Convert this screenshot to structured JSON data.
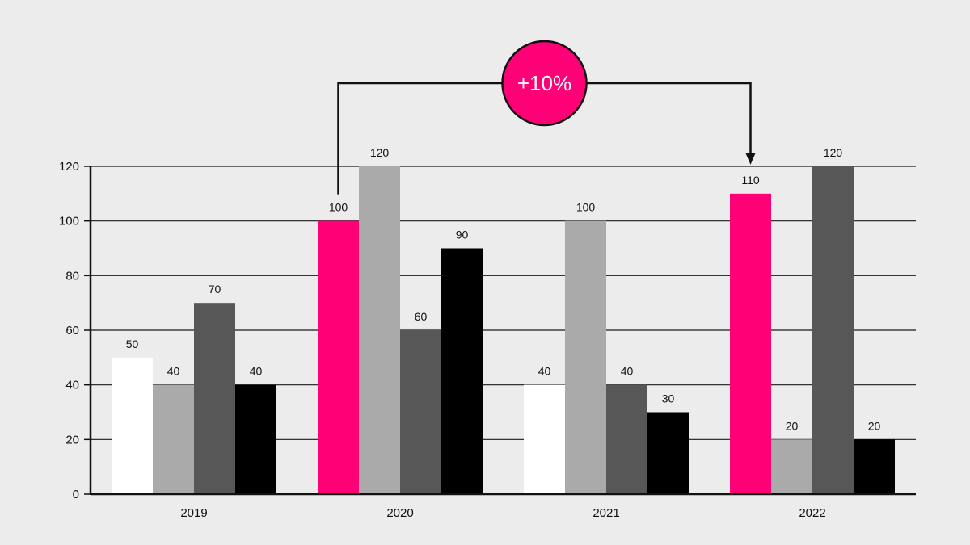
{
  "chart_data": {
    "type": "bar",
    "categories": [
      "2019",
      "2020",
      "2021",
      "2022"
    ],
    "series": [
      {
        "values": [
          50,
          100,
          40,
          110
        ]
      },
      {
        "values": [
          40,
          120,
          100,
          20
        ]
      },
      {
        "values": [
          70,
          60,
          40,
          120
        ]
      },
      {
        "values": [
          40,
          90,
          30,
          20
        ]
      }
    ],
    "ylim": [
      0,
      120
    ],
    "yticks": [
      0,
      20,
      40,
      60,
      80,
      100,
      120
    ],
    "grid": true,
    "legend": "none",
    "colors": {
      "series": [
        "#ffffff",
        "#aaaaaa",
        "#575757",
        "#000000"
      ],
      "highlight": "#ff0077",
      "background": "#ececec",
      "axis": "#111111"
    },
    "highlight_bars": [
      [
        0,
        1
      ],
      [
        0,
        3
      ]
    ],
    "annotation": {
      "text": "+10%",
      "from": {
        "series": 0,
        "category": 1
      },
      "to": {
        "series": 0,
        "category": 3
      }
    }
  }
}
